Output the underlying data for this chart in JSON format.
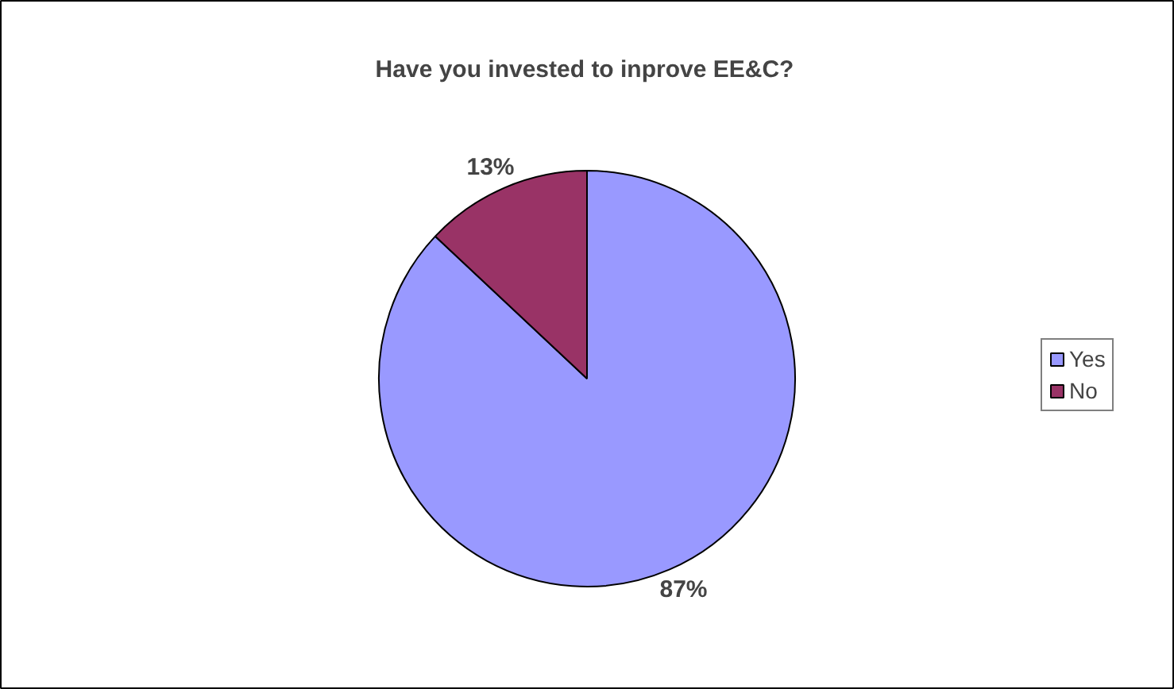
{
  "chart_data": {
    "type": "pie",
    "title": "Have you invested to inprove EE&C?",
    "categories": [
      "Yes",
      "No"
    ],
    "values": [
      87,
      13
    ],
    "colors": [
      "#9999ff",
      "#993366"
    ],
    "value_labels": [
      "87%",
      "13%"
    ],
    "legend": "right"
  }
}
